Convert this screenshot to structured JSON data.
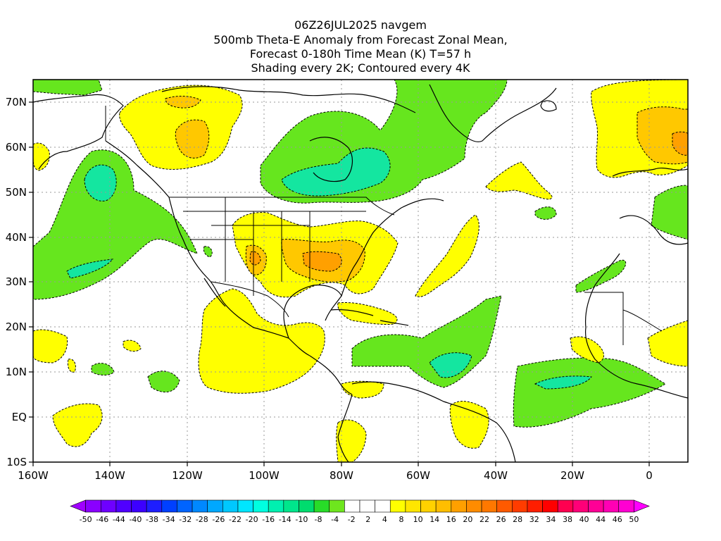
{
  "title": {
    "line1": "06Z26JUL2025 navgem",
    "line2": "500mb Theta-E Anomaly from Forecast Zonal Mean,",
    "line3": "Forecast 0-180h Time Mean (K) T=57 h",
    "line4": "Shading every 2K; Contoured every 4K"
  },
  "axes": {
    "x_ticks": [
      "160W",
      "140W",
      "120W",
      "100W",
      "80W",
      "60W",
      "40W",
      "20W",
      "0"
    ],
    "y_ticks": [
      "70N",
      "60N",
      "50N",
      "40N",
      "30N",
      "20N",
      "10N",
      "EQ",
      "10S"
    ],
    "lon_range": [
      -160,
      10
    ],
    "lat_range": [
      -10,
      75
    ]
  },
  "colorbar": {
    "labels": [
      "-50",
      "-46",
      "-44",
      "-40",
      "-38",
      "-34",
      "-32",
      "-28",
      "-26",
      "-22",
      "-20",
      "-16",
      "-14",
      "-10",
      "-8",
      "-4",
      "-2",
      "2",
      "4",
      "8",
      "10",
      "14",
      "16",
      "20",
      "22",
      "26",
      "28",
      "32",
      "34",
      "38",
      "40",
      "44",
      "46",
      "50"
    ],
    "colors": [
      "#a000ff",
      "#8a00ff",
      "#6e00ff",
      "#5000ff",
      "#3c00ff",
      "#1e1eff",
      "#0040ff",
      "#0064ff",
      "#0088ff",
      "#00a8ff",
      "#00c8ff",
      "#00e6ff",
      "#00ffe0",
      "#00f0b0",
      "#00e68c",
      "#00dc6e",
      "#28dc28",
      "#6ee61e",
      "#ffffff",
      "#ffffff",
      "#ffffff",
      "#ffff00",
      "#ffe600",
      "#ffd200",
      "#ffbe00",
      "#ffa000",
      "#ff8c00",
      "#ff7800",
      "#ff5a00",
      "#ff3c00",
      "#ff1e00",
      "#ff0000",
      "#ff0050",
      "#ff0078",
      "#ff0096",
      "#ff00b4",
      "#ff00d2",
      "#ff00ff"
    ]
  },
  "field_colors": {
    "green": "#66e61e",
    "green_mid": "#28d870",
    "cyan_green": "#14e6a0",
    "yellow": "#ffff00",
    "gold": "#ffe600",
    "amber": "#ffc800",
    "orange": "#ffa000"
  }
}
